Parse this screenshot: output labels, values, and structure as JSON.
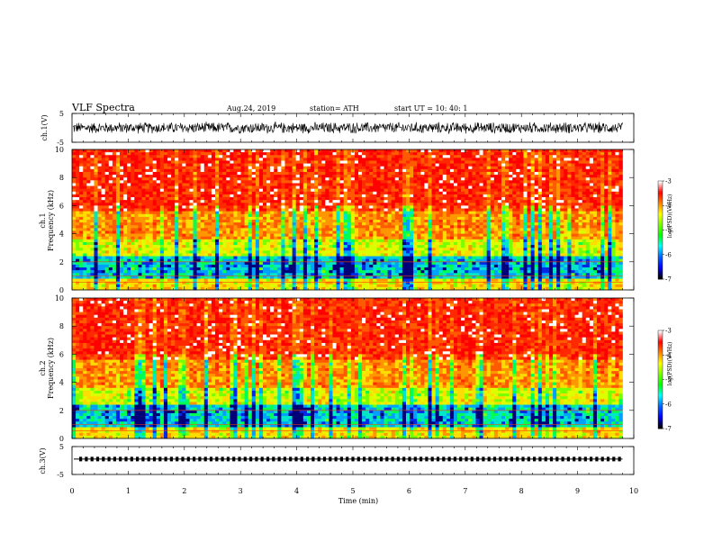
{
  "header": {
    "title": "VLF  Spectra",
    "date": "Aug.24, 2019",
    "station": "station= ATH",
    "start": "start  UT  =    10: 40: 1"
  },
  "chart_data": [
    {
      "type": "line",
      "name": "ch1-waveform",
      "ylabel": "ch.1(V)",
      "ylim": [
        -5,
        5
      ],
      "yticks": [
        "5",
        "-5"
      ],
      "xlim": [
        0,
        10
      ],
      "description_values": {
        "amplitude_range_V": [
          -2.2,
          2.2
        ],
        "duration_min": 9.8
      }
    },
    {
      "type": "heatmap",
      "name": "ch1-spectrogram",
      "ylabel": "Frequency (kHz)",
      "channel_label": "ch.1",
      "ylim": [
        0,
        10
      ],
      "yticks": [
        "0",
        "2",
        "4",
        "6",
        "8",
        "10"
      ],
      "xlim": [
        0,
        10
      ],
      "colorbar": {
        "label": "log(PSD)(V²/Hz)",
        "range": [
          -7,
          -3
        ],
        "ticks": [
          "-3",
          "-4",
          "-5",
          "-6",
          "-7"
        ]
      }
    },
    {
      "type": "heatmap",
      "name": "ch2-spectrogram",
      "ylabel": "Frequency (kHz)",
      "channel_label": "ch.2",
      "ylim": [
        0,
        10
      ],
      "yticks": [
        "0",
        "2",
        "4",
        "6",
        "8",
        "10"
      ],
      "xlim": [
        0,
        10
      ],
      "colorbar": {
        "label": "log(PSD)(V²/Hz)",
        "range": [
          -7,
          -3
        ],
        "ticks": [
          "-3",
          "-4",
          "-5",
          "-6",
          "-7"
        ]
      }
    },
    {
      "type": "line",
      "name": "ch3-signal",
      "ylabel": "ch.3(V)",
      "ylim": [
        -5,
        5
      ],
      "yticks": [
        "5",
        "-5"
      ],
      "xlim": [
        0,
        10
      ],
      "description_values": {
        "level_V": 0.2,
        "duration_min": 9.8
      }
    }
  ],
  "xaxis": {
    "label": "Time  (min)",
    "ticks": [
      "0",
      "1",
      "2",
      "3",
      "4",
      "5",
      "6",
      "7",
      "8",
      "9",
      "10"
    ]
  },
  "colors": {
    "scale": [
      "#000000",
      "#0000ff",
      "#00ffff",
      "#00ff00",
      "#ffff00",
      "#ff8000",
      "#ff0000",
      "#ffffff"
    ]
  }
}
